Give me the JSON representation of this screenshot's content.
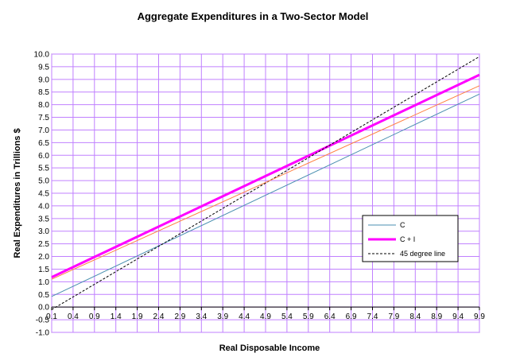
{
  "chart_data": {
    "type": "line",
    "title": "Aggregate Expenditures in a Two-Sector Model",
    "xlabel": "Real Disposable Income",
    "ylabel": "Real Expenditures in Trillions $",
    "x_ticks": [
      "0.1",
      "0.4",
      "0.9",
      "1.4",
      "1.9",
      "2.4",
      "2.9",
      "3.4",
      "3.9",
      "4.4",
      "4.9",
      "5.4",
      "5.9",
      "6.4",
      "6.9",
      "7.4",
      "7.9",
      "8.4",
      "8.9",
      "9.4",
      "9.9"
    ],
    "y_ticks": [
      "-1.0",
      "-0.5",
      "0.0",
      "0.5",
      "1.0",
      "1.5",
      "2.0",
      "2.5",
      "3.0",
      "3.5",
      "4.0",
      "4.5",
      "5.0",
      "5.5",
      "6.0",
      "6.5",
      "7.0",
      "7.5",
      "8.0",
      "8.5",
      "9.0",
      "9.5",
      "10.0"
    ],
    "xlim": [
      0.1,
      9.9
    ],
    "ylim": [
      -1.0,
      10.0
    ],
    "grid": true,
    "legend_position": "right",
    "series": [
      {
        "name": "C",
        "color": "#4a8fb0",
        "x": [
          0.1,
          9.9
        ],
        "y": [
          0.42,
          8.42
        ],
        "width": 1,
        "dash": false,
        "in_legend": true
      },
      {
        "name": "C + I",
        "color": "#ff00ff",
        "x": [
          0.1,
          9.9
        ],
        "y": [
          1.18,
          9.18
        ],
        "width": 3,
        "dash": false,
        "in_legend": true
      },
      {
        "name": "45 degree line",
        "color": "#000000",
        "x": [
          0.1,
          9.9
        ],
        "y": [
          -0.1,
          9.9
        ],
        "width": 1,
        "dash": true,
        "in_legend": true
      },
      {
        "name": "",
        "color": "#ff8040",
        "x": [
          0.1,
          9.9
        ],
        "y": [
          1.1,
          8.75
        ],
        "width": 1,
        "dash": false,
        "in_legend": false
      }
    ]
  }
}
